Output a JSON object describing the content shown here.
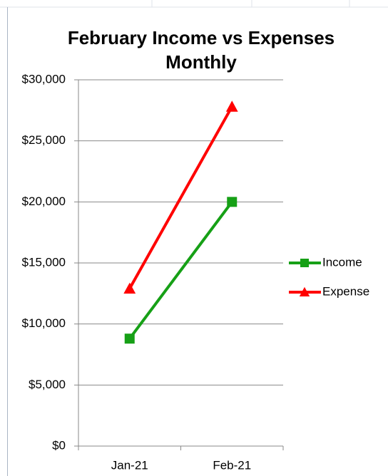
{
  "chart_data": {
    "type": "line",
    "title": "February Income vs Expenses Monthly",
    "categories": [
      "Jan-21",
      "Feb-21"
    ],
    "series": [
      {
        "name": "Income",
        "color": "#16a016",
        "marker": "square",
        "values": [
          8800,
          20000
        ]
      },
      {
        "name": "Expense",
        "color": "#ff0000",
        "marker": "triangle",
        "values": [
          12900,
          27800
        ]
      }
    ],
    "ylim": [
      0,
      30000
    ],
    "yticks": [
      {
        "value": 0,
        "label": "$0"
      },
      {
        "value": 5000,
        "label": "$5,000"
      },
      {
        "value": 10000,
        "label": "$10,000"
      },
      {
        "value": 15000,
        "label": "$15,000"
      },
      {
        "value": 20000,
        "label": "$20,000"
      },
      {
        "value": 25000,
        "label": "$25,000"
      },
      {
        "value": 30000,
        "label": "$30,000"
      }
    ],
    "grid": true,
    "legend": "right"
  }
}
